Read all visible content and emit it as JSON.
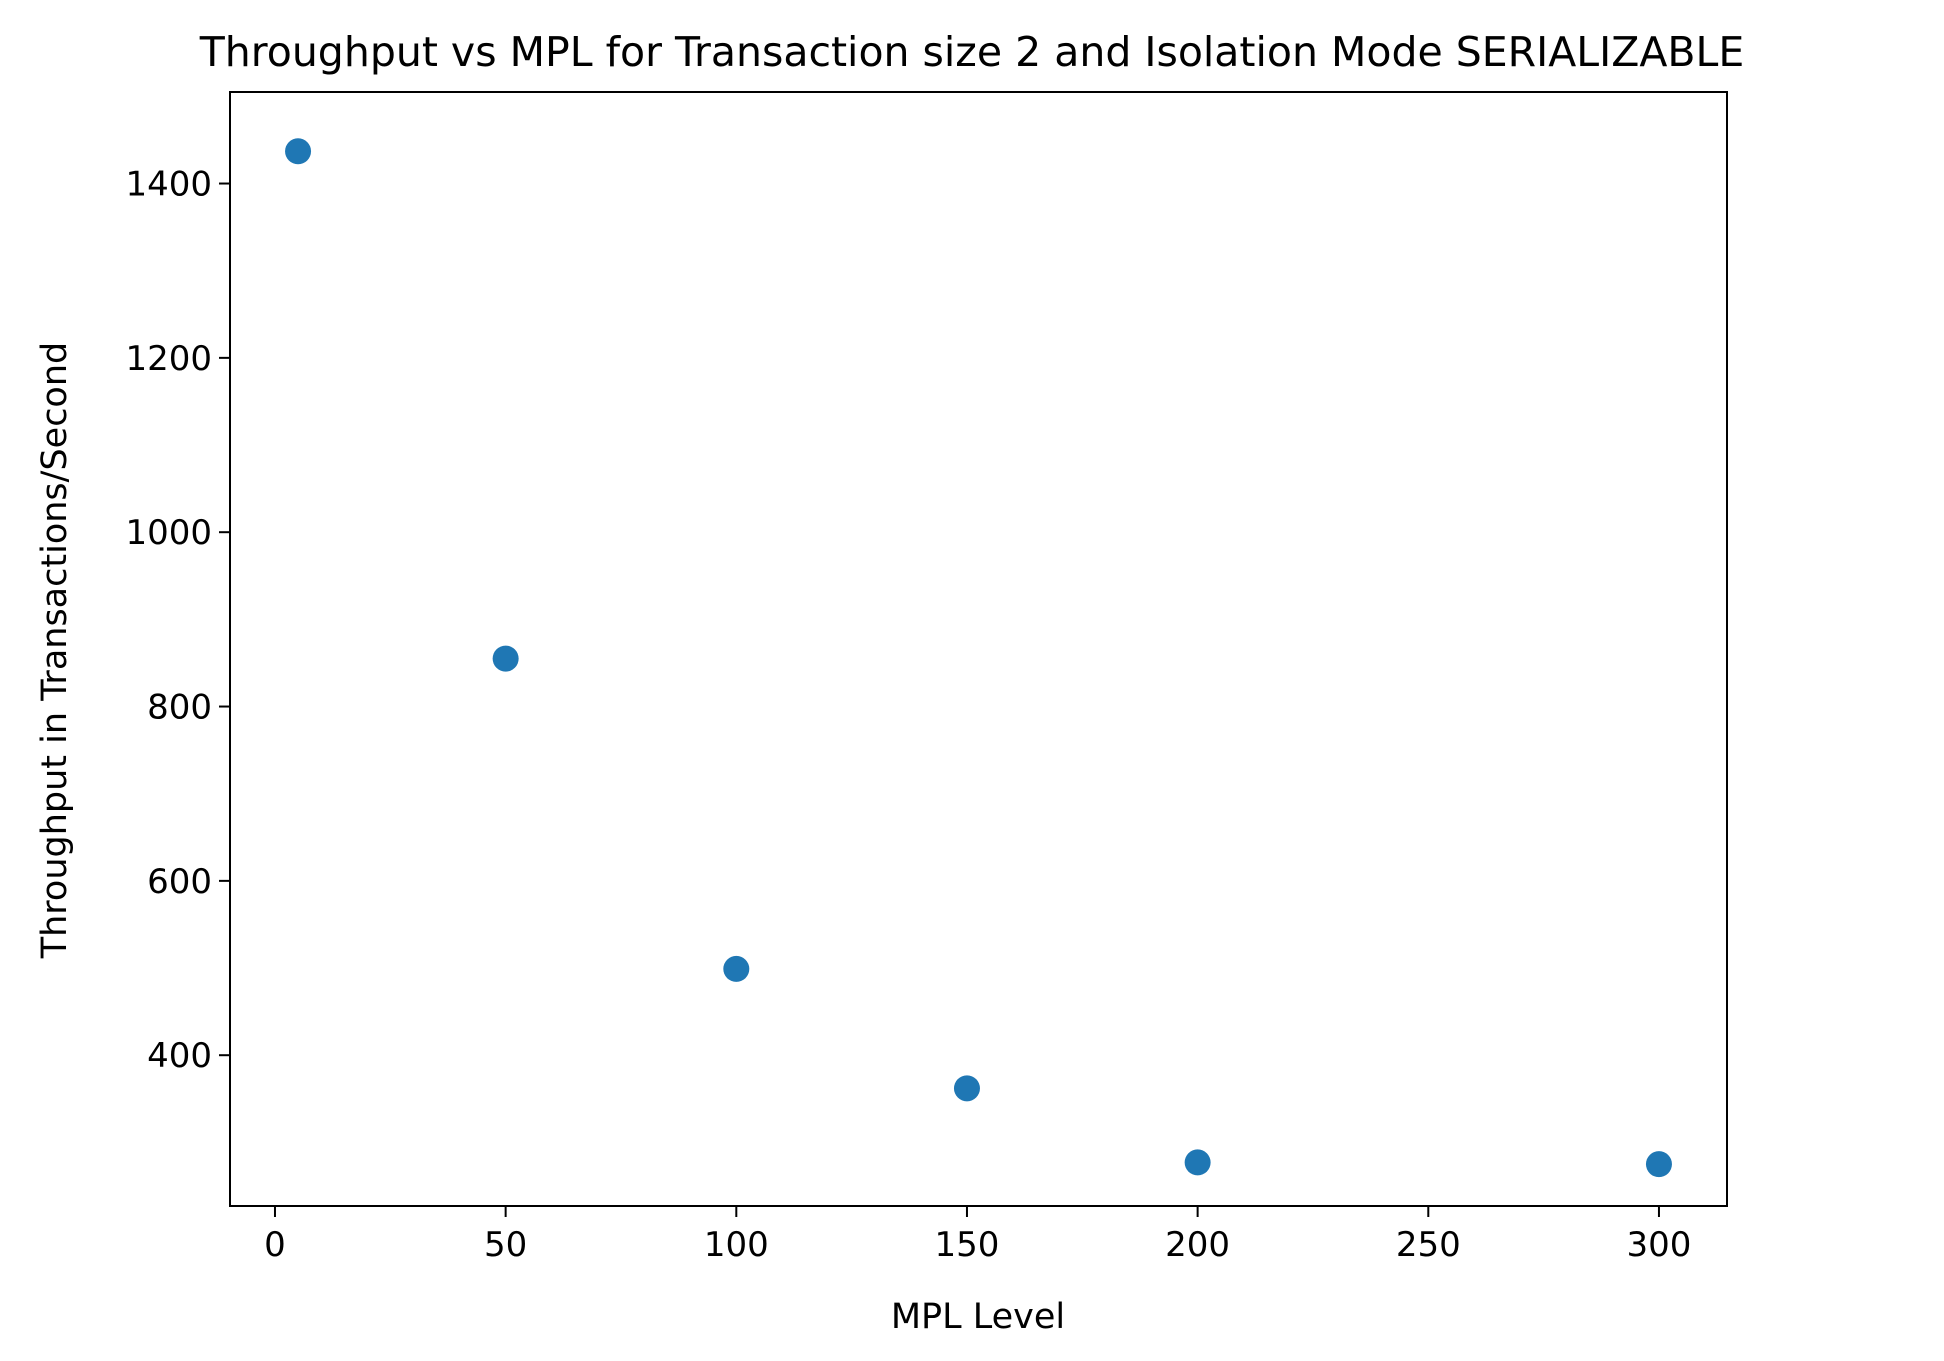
{
  "chart_data": {
    "type": "scatter",
    "title": "Throughput vs MPL for Transaction size 2 and Isolation Mode SERIALIZABLE",
    "xlabel": "MPL Level",
    "ylabel": "Throughput in Transactions/Second",
    "xlim": [
      -9.75,
      314.75
    ],
    "ylim": [
      227,
      1505
    ],
    "xticks": [
      0,
      50,
      100,
      150,
      200,
      250,
      300
    ],
    "yticks": [
      400,
      600,
      800,
      1000,
      1200,
      1400
    ],
    "x": [
      5,
      50,
      100,
      150,
      200,
      300
    ],
    "y": [
      1437,
      855,
      499,
      362,
      277,
      275
    ],
    "grid": false,
    "marker_color": "#1f77b4"
  }
}
